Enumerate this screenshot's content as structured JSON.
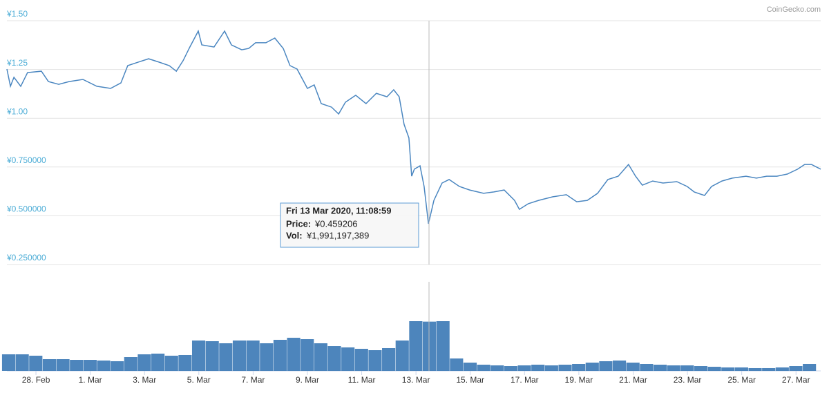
{
  "chart_data": {
    "type": "line",
    "credit": "CoinGecko.com",
    "x": [
      -1.07,
      -0.94,
      -0.81,
      -0.56,
      -0.31,
      0.2,
      0.46,
      0.84,
      1.22,
      1.73,
      2.24,
      2.75,
      3.13,
      3.38,
      3.77,
      4.15,
      4.53,
      4.91,
      5.17,
      5.42,
      5.67,
      5.98,
      6.11,
      6.56,
      6.95,
      7.2,
      7.58,
      7.84,
      8.09,
      8.47,
      8.8,
      9.11,
      9.36,
      9.62,
      10.0,
      10.25,
      10.51,
      10.89,
      11.15,
      11.4,
      11.78,
      12.16,
      12.54,
      12.93,
      13.18,
      13.38,
      13.56,
      13.74,
      13.84,
      13.94,
      14.15,
      14.3,
      14.46,
      14.66,
      14.96,
      15.22,
      15.6,
      15.98,
      16.49,
      16.87,
      17.25,
      17.63,
      17.81,
      18.14,
      18.52,
      19.03,
      19.54,
      19.92,
      20.31,
      20.69,
      21.07,
      21.45,
      21.83,
      22.09,
      22.34,
      22.72,
      23.1,
      23.61,
      23.99,
      24.25,
      24.63,
      24.89,
      25.27,
      25.65,
      26.16,
      26.54,
      26.92,
      27.3,
      27.68,
      28.06,
      28.32,
      28.57,
      28.91
    ],
    "series": [
      {
        "name": "Price",
        "color": "#4a86c0",
        "values": [
          1.252,
          1.164,
          1.21,
          1.164,
          1.234,
          1.241,
          1.188,
          1.174,
          1.188,
          1.199,
          1.164,
          1.153,
          1.181,
          1.27,
          1.288,
          1.305,
          1.288,
          1.27,
          1.241,
          1.295,
          1.365,
          1.447,
          1.376,
          1.365,
          1.447,
          1.376,
          1.351,
          1.358,
          1.387,
          1.387,
          1.411,
          1.358,
          1.27,
          1.252,
          1.153,
          1.171,
          1.075,
          1.057,
          1.022,
          1.082,
          1.118,
          1.075,
          1.128,
          1.11,
          1.146,
          1.11,
          0.969,
          0.899,
          0.703,
          0.739,
          0.756,
          0.65,
          0.459206,
          0.579,
          0.668,
          0.686,
          0.65,
          0.632,
          0.615,
          0.622,
          0.632,
          0.579,
          0.533,
          0.562,
          0.579,
          0.597,
          0.608,
          0.572,
          0.579,
          0.615,
          0.686,
          0.703,
          0.763,
          0.703,
          0.657,
          0.678,
          0.668,
          0.675,
          0.65,
          0.622,
          0.604,
          0.65,
          0.678,
          0.693,
          0.703,
          0.693,
          0.703,
          0.703,
          0.714,
          0.739,
          0.763,
          0.763,
          0.739
        ]
      }
    ],
    "volume": {
      "name": "Vol",
      "color": "#3a78b5",
      "x": [
        -1,
        -0.5,
        0,
        0.5,
        1,
        1.5,
        2,
        2.5,
        3,
        3.5,
        4,
        4.5,
        5,
        5.5,
        6,
        6.5,
        7,
        7.5,
        8,
        8.5,
        9,
        9.5,
        10,
        10.5,
        11,
        11.5,
        12,
        12.5,
        13,
        13.5,
        14,
        14.5,
        15,
        15.5,
        16,
        16.5,
        17,
        17.5,
        18,
        18.5,
        19,
        19.5,
        20,
        20.5,
        21,
        21.5,
        22,
        22.5,
        23,
        23.5,
        24,
        24.5,
        25,
        25.5,
        26,
        26.5,
        27,
        27.5,
        28,
        28.5
      ],
      "values": [
        670000000,
        670000000,
        614000000,
        474000000,
        474000000,
        446000000,
        446000000,
        419000000,
        391000000,
        558000000,
        670000000,
        698000000,
        614000000,
        642000000,
        1228000000,
        1200000000,
        1116000000,
        1228000000,
        1228000000,
        1116000000,
        1256000000,
        1339000000,
        1283000000,
        1116000000,
        1004000000,
        949000000,
        893000000,
        837000000,
        921000000,
        1228000000,
        2009000000,
        1991197389,
        2009000000,
        502000000,
        335000000,
        251000000,
        223000000,
        195000000,
        223000000,
        251000000,
        223000000,
        251000000,
        279000000,
        335000000,
        391000000,
        419000000,
        335000000,
        279000000,
        251000000,
        223000000,
        223000000,
        195000000,
        167000000,
        140000000,
        140000000,
        112000000,
        112000000,
        140000000,
        195000000,
        279000000
      ],
      "ylim": [
        0,
        3600000000
      ]
    },
    "xlim": [
      -1.07,
      28.91
    ],
    "xticks": [
      {
        "value": 0,
        "label": "28. Feb"
      },
      {
        "value": 2,
        "label": "1. Mar"
      },
      {
        "value": 4,
        "label": "3. Mar"
      },
      {
        "value": 6,
        "label": "5. Mar"
      },
      {
        "value": 8,
        "label": "7. Mar"
      },
      {
        "value": 10,
        "label": "9. Mar"
      },
      {
        "value": 12,
        "label": "11. Mar"
      },
      {
        "value": 14,
        "label": "13. Mar"
      },
      {
        "value": 16,
        "label": "15. Mar"
      },
      {
        "value": 18,
        "label": "17. Mar"
      },
      {
        "value": 20,
        "label": "19. Mar"
      },
      {
        "value": 22,
        "label": "21. Mar"
      },
      {
        "value": 24,
        "label": "23. Mar"
      },
      {
        "value": 26,
        "label": "25. Mar"
      },
      {
        "value": 28,
        "label": "27. Mar"
      }
    ],
    "ylim": [
      0.25,
      1.5
    ],
    "yticks": [
      {
        "value": 0.25,
        "label": "¥0.250000"
      },
      {
        "value": 0.5,
        "label": "¥0.500000"
      },
      {
        "value": 0.75,
        "label": "¥0.750000"
      },
      {
        "value": 1.0,
        "label": "¥1.00"
      },
      {
        "value": 1.25,
        "label": "¥1.25"
      },
      {
        "value": 1.5,
        "label": "¥1.50"
      }
    ],
    "grid": true,
    "tooltip": {
      "date": "Fri 13 Mar 2020, 11:08:59",
      "price_label": "Price:",
      "price": "¥0.459206",
      "vol_label": "Vol:",
      "vol": "¥1,991,197,389"
    }
  }
}
